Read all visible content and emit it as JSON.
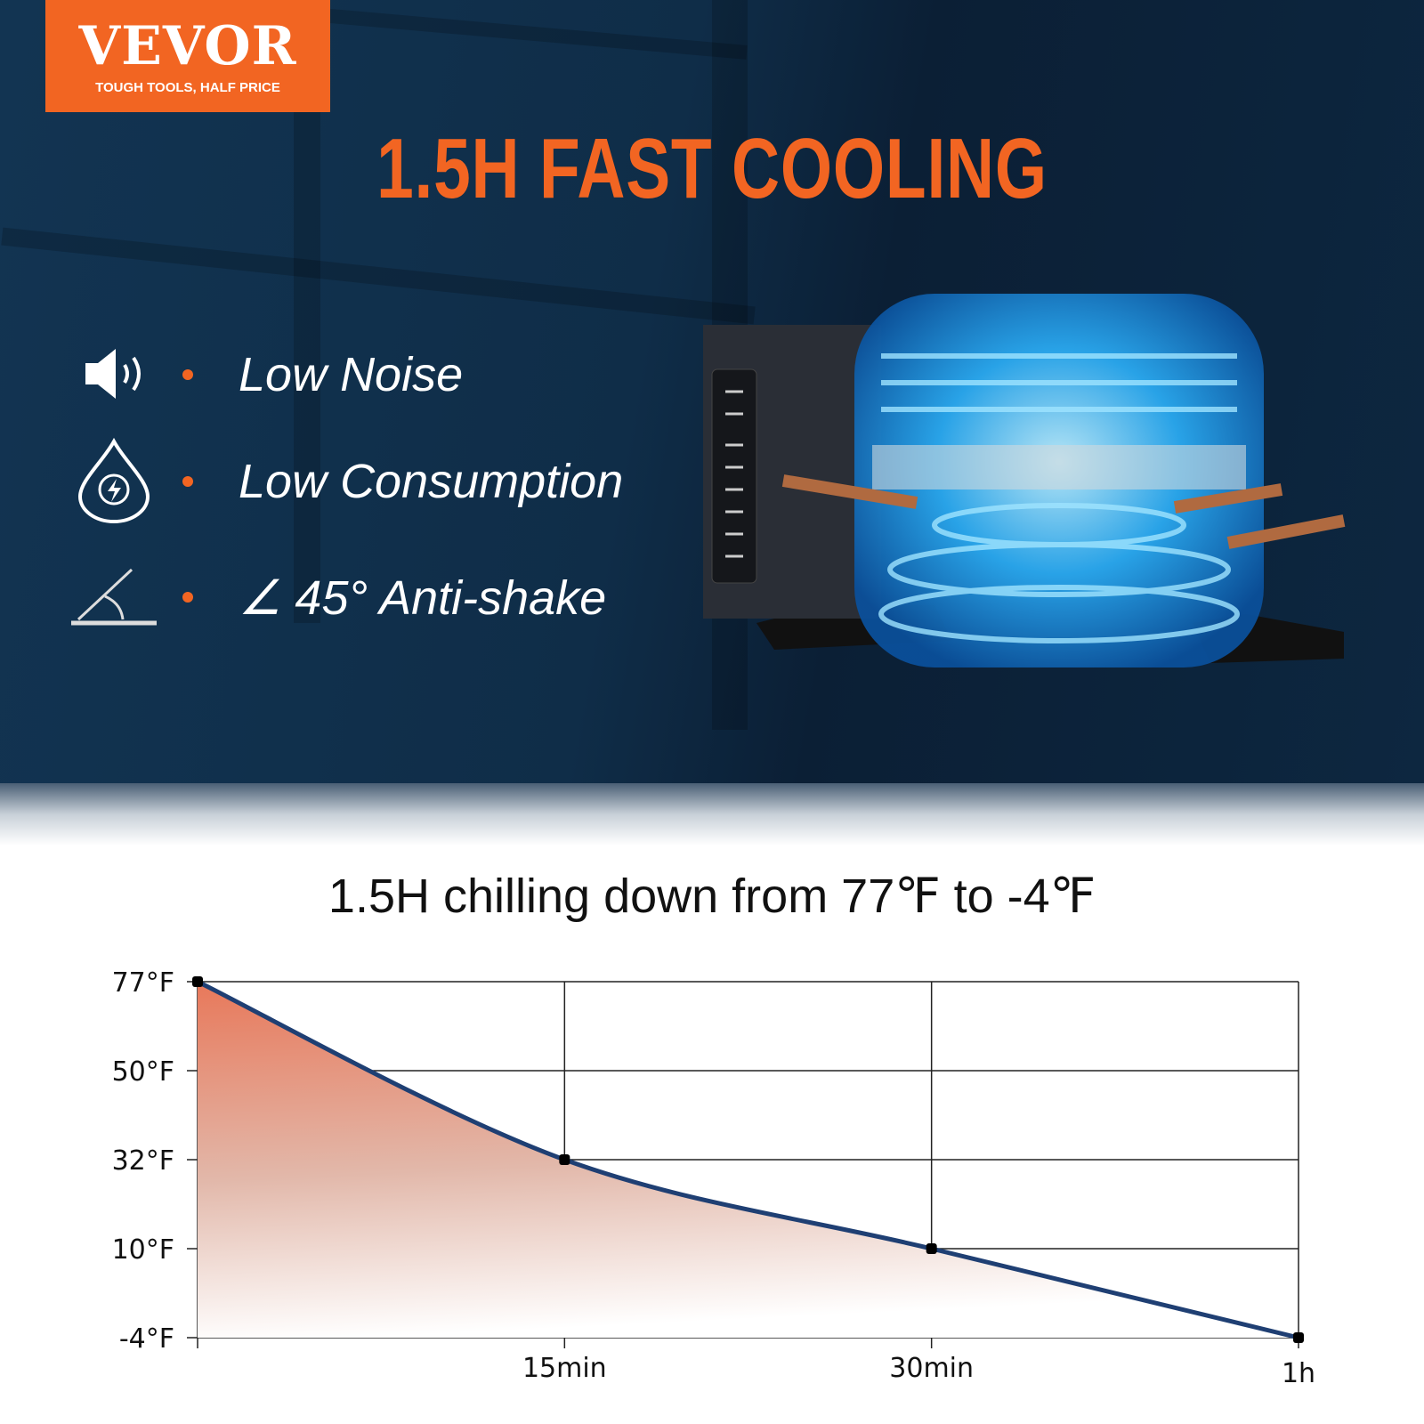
{
  "logo": {
    "brand": "VEVOR",
    "tagline": "TOUGH TOOLS, HALF PRICE"
  },
  "headline": "1.5H FAST COOLING",
  "features": [
    {
      "icon": "speaker-icon",
      "label": "Low Noise"
    },
    {
      "icon": "energy-drop-icon",
      "label": "Low Consumption"
    },
    {
      "icon": "angle-icon",
      "label": "∠ 45° Anti-shake"
    }
  ],
  "colors": {
    "accent": "#f26522",
    "background": "#0f2d48",
    "line": "#1f3f73"
  },
  "chart_data": {
    "type": "area",
    "title": "1.5H chilling down from 77℉ to -4℉",
    "x": [
      "0",
      "15min",
      "30min",
      "1h"
    ],
    "x_tick_labels": [
      "15min",
      "30min",
      "1h"
    ],
    "y_tick_labels": [
      "77°F",
      "50°F",
      "32°F",
      "10°F",
      "-4°F"
    ],
    "y_ticks": [
      77,
      50,
      32,
      10,
      -4
    ],
    "values": [
      77,
      32,
      10,
      -4
    ],
    "grid": true
  }
}
